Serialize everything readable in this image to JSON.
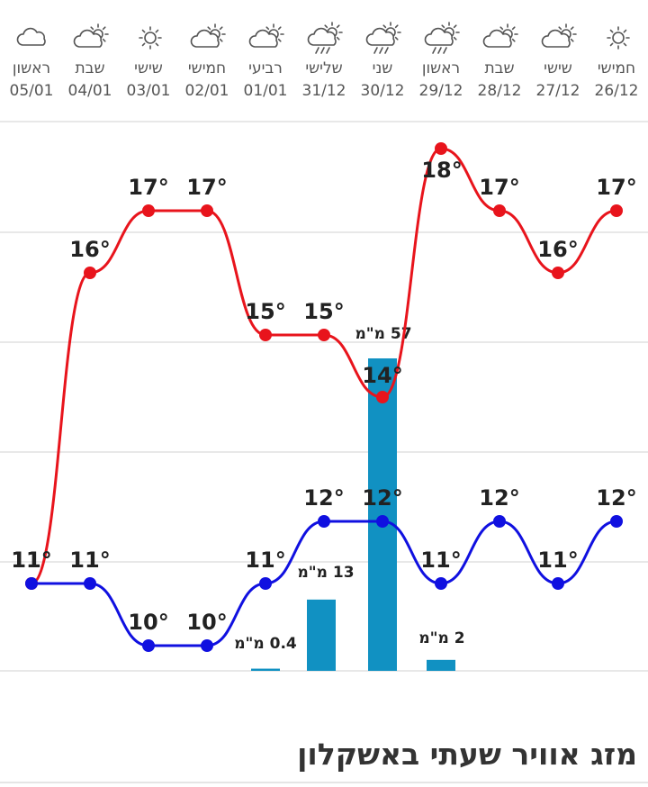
{
  "page": {
    "title": "מזג אוויר שעתי באשקלון"
  },
  "colors": {
    "high": "#e8141c",
    "low": "#1010e0",
    "rain": "#1191c2",
    "grid": "#e0e0e0",
    "text": "#222222"
  },
  "chart_data": {
    "type": "line",
    "days": [
      {
        "name": "ראשון",
        "date": "05/01",
        "icon": "cloud-icon"
      },
      {
        "name": "שבת",
        "date": "04/01",
        "icon": "partly-cloudy-icon"
      },
      {
        "name": "שישי",
        "date": "03/01",
        "icon": "sun-icon"
      },
      {
        "name": "חמישי",
        "date": "02/01",
        "icon": "partly-cloudy-icon"
      },
      {
        "name": "רביעי",
        "date": "01/01",
        "icon": "partly-cloudy-icon"
      },
      {
        "name": "שלישי",
        "date": "31/12",
        "icon": "rain-sun-icon"
      },
      {
        "name": "שני",
        "date": "30/12",
        "icon": "rain-sun-icon"
      },
      {
        "name": "ראשון",
        "date": "29/12",
        "icon": "rain-sun-icon"
      },
      {
        "name": "שבת",
        "date": "28/12",
        "icon": "partly-cloudy-icon"
      },
      {
        "name": "שישי",
        "date": "27/12",
        "icon": "partly-cloudy-icon"
      },
      {
        "name": "חמישי",
        "date": "26/12",
        "icon": "sun-icon"
      }
    ],
    "series": [
      {
        "values": [
          11,
          16,
          17,
          17,
          15,
          15,
          14,
          18,
          17,
          16,
          17
        ],
        "labels": [
          "11°",
          "16°",
          "17°",
          "17°",
          "15°",
          "15°",
          "14°",
          "18°",
          "17°",
          "16°",
          "17°"
        ]
      },
      {
        "values": [
          11,
          11,
          10,
          10,
          11,
          12,
          12,
          11,
          12,
          11,
          12
        ],
        "labels": [
          "11°",
          "11°",
          "10°",
          "10°",
          "11°",
          "12°",
          "12°",
          "11°",
          "12°",
          "11°",
          "12°"
        ]
      }
    ],
    "rain": [
      {
        "index": 4,
        "value": 0.4,
        "label": "0.4 מ\"מ"
      },
      {
        "index": 5,
        "value": 13,
        "label": "13 מ\"מ"
      },
      {
        "index": 6,
        "value": 57,
        "label": "57 מ\"מ"
      },
      {
        "index": 7,
        "value": 2,
        "label": "2 מ\"מ"
      }
    ],
    "ylim": [
      9,
      19
    ],
    "grid": true
  }
}
